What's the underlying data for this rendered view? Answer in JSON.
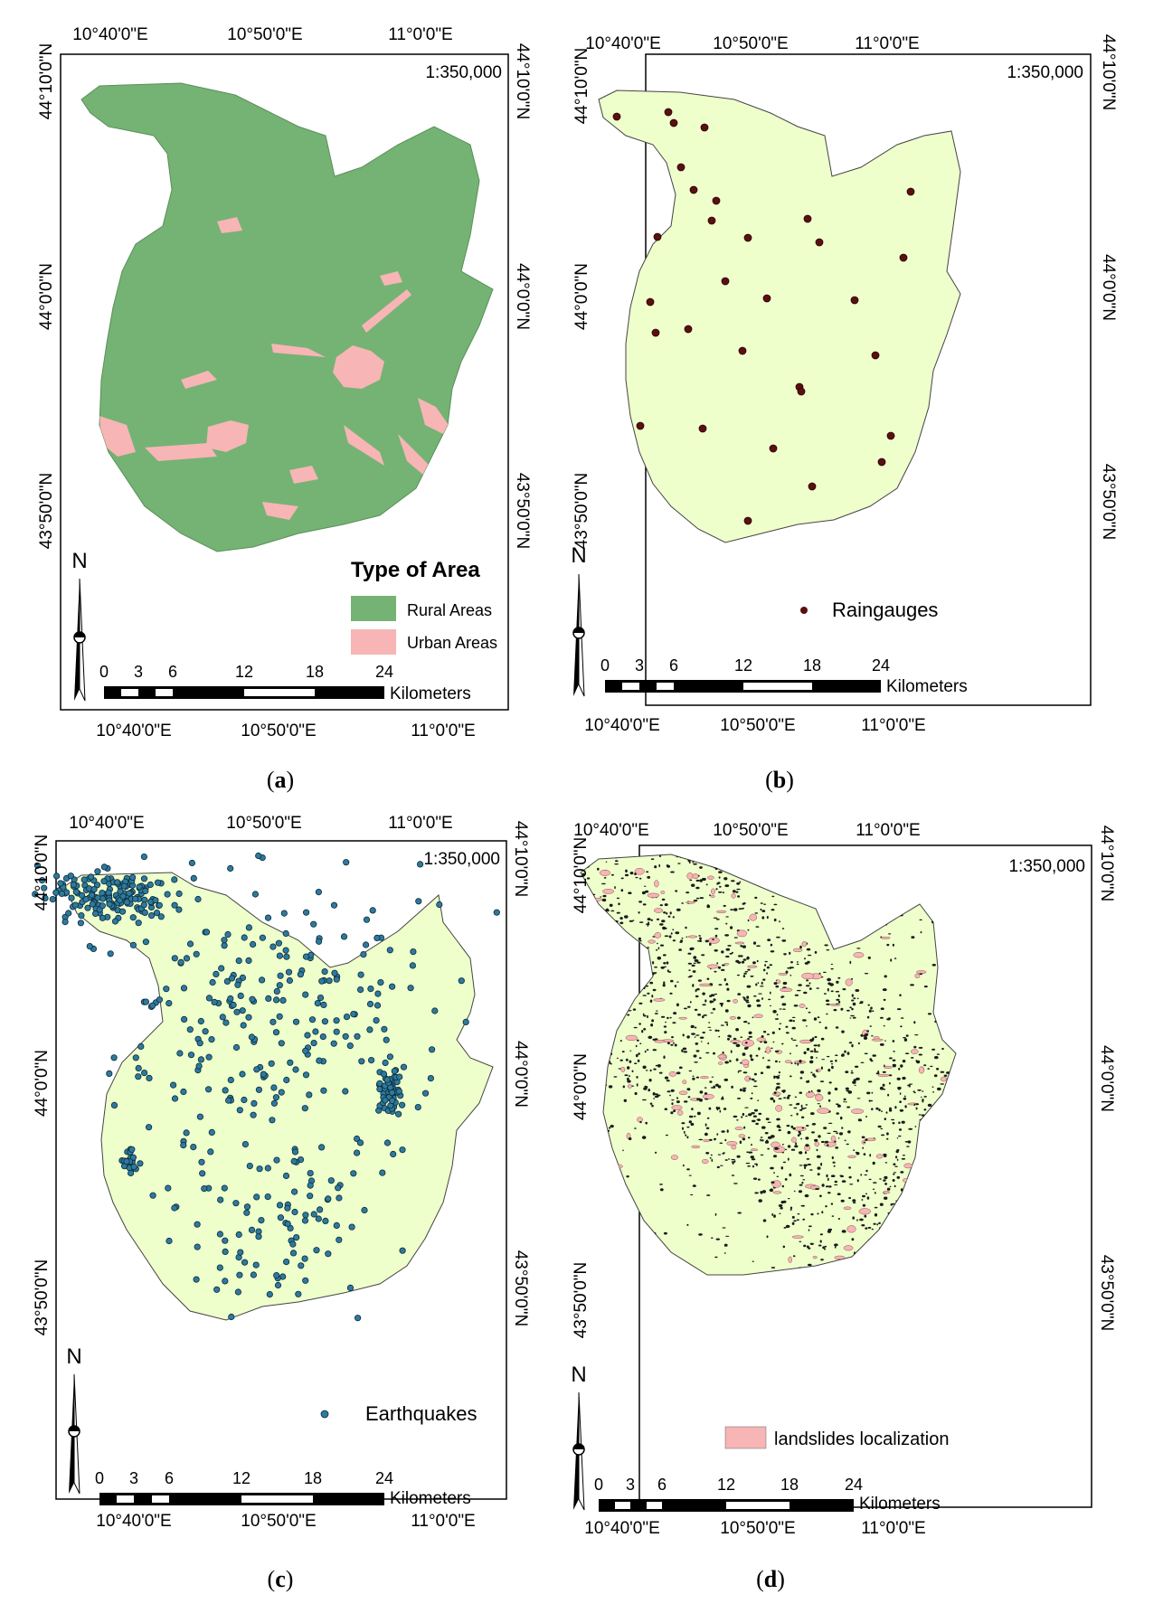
{
  "figure": {
    "panels": [
      {
        "id": "a",
        "caption_letter": "a",
        "scale": "1:350,000",
        "top_labels": [
          "10°40'0\"E",
          "10°50'0\"E",
          "11°0'0\"E"
        ],
        "bottom_labels": [
          "10°40'0\"E",
          "10°50'0\"E",
          "11°0'0\"E"
        ],
        "left_labels": [
          "44°10'0\"N",
          "44°0'0\"N",
          "43°50'0\"N"
        ],
        "right_labels": [
          "44°10'0\"N",
          "44°0'0\"N",
          "43°50'0\"N"
        ],
        "north": "N",
        "scalebar_ticks": [
          "0",
          "3",
          "6",
          "12",
          "18",
          "24"
        ],
        "scalebar_unit": "Kilometers",
        "base_color": "#74b374",
        "legend": {
          "title": "Type of Area",
          "items": [
            {
              "label": "Rural Areas",
              "color": "#74b374",
              "symbol": "patch"
            },
            {
              "label": "Urban Areas",
              "color": "#f7b5b5",
              "symbol": "patch"
            }
          ]
        }
      },
      {
        "id": "b",
        "caption_letter": "b",
        "scale": "1:350,000",
        "top_labels": [
          "10°40'0\"E",
          "10°50'0\"E",
          "11°0'0\"E"
        ],
        "bottom_labels": [
          "10°40'0\"E",
          "10°50'0\"E",
          "11°0'0\"E"
        ],
        "left_labels": [
          "44°10'0\"N",
          "44°0'0\"N",
          "43°50'0\"N"
        ],
        "right_labels": [
          "44°10'0\"N",
          "44°0'0\"N",
          "43°50'0\"N"
        ],
        "north": "N",
        "scalebar_ticks": [
          "0",
          "3",
          "6",
          "12",
          "18",
          "24"
        ],
        "scalebar_unit": "Kilometers",
        "base_color": "#eeffcc",
        "legend": {
          "title": "",
          "items": [
            {
              "label": "Raingauges",
              "color": "#5a1010",
              "symbol": "dot"
            }
          ]
        }
      },
      {
        "id": "c",
        "caption_letter": "c",
        "scale": "1:350,000",
        "top_labels": [
          "10°40'0\"E",
          "10°50'0\"E",
          "11°0'0\"E"
        ],
        "bottom_labels": [
          "10°40'0\"E",
          "10°50'0\"E",
          "11°0'0\"E"
        ],
        "left_labels": [
          "44°10'0\"N",
          "44°0'0\"N",
          "43°50'0\"N"
        ],
        "right_labels": [
          "44°10'0\"N",
          "44°0'0\"N",
          "43°50'0\"N"
        ],
        "north": "N",
        "scalebar_ticks": [
          "0",
          "3",
          "6",
          "12",
          "18",
          "24"
        ],
        "scalebar_unit": "Kilometers",
        "base_color": "#eeffcc",
        "legend": {
          "title": "",
          "items": [
            {
              "label": "Earthquakes",
              "color": "#2e7a9e",
              "symbol": "dot"
            }
          ]
        }
      },
      {
        "id": "d",
        "caption_letter": "d",
        "scale": "1:350,000",
        "top_labels": [
          "10°40'0\"E",
          "10°50'0\"E",
          "11°0'0\"E"
        ],
        "bottom_labels": [
          "10°40'0\"E",
          "10°50'0\"E",
          "11°0'0\"E"
        ],
        "left_labels": [
          "44°10'0\"N",
          "44°0'0\"N",
          "43°50'0\"N"
        ],
        "right_labels": [
          "44°10'0\"N",
          "44°0'0\"N",
          "43°50'0\"N"
        ],
        "north": "N",
        "scalebar_ticks": [
          "0",
          "3",
          "6",
          "12",
          "18",
          "24"
        ],
        "scalebar_unit": "Kilometers",
        "base_color": "#eeffcc",
        "legend": {
          "title": "",
          "items": [
            {
              "label": "landslides localization",
              "color": "#f7b5b5",
              "symbol": "patch"
            }
          ]
        }
      }
    ]
  }
}
